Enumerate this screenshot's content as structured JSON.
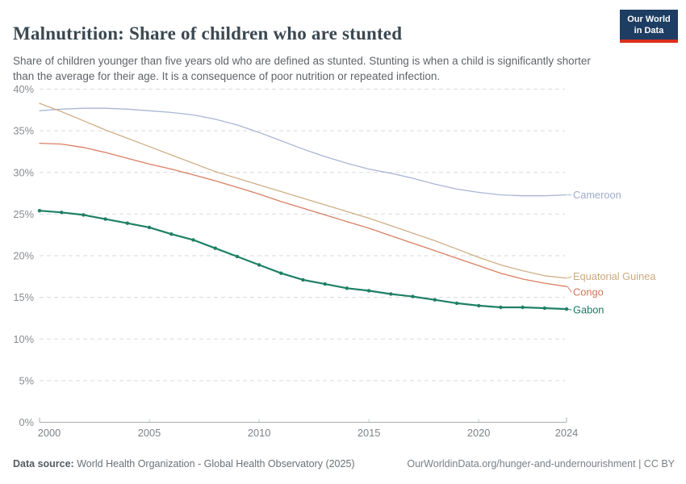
{
  "header": {
    "title": "Malnutrition: Share of children who are stunted",
    "subtitle": "Share of children younger than five years old who are defined as stunted. Stunting is when a child is significantly shorter than the average for their age. It is a consequence of poor nutrition or repeated infection.",
    "logo": {
      "line1": "Our World",
      "line2": "in Data",
      "bg_color": "#1d3d63",
      "bar_color": "#dc2e1c"
    }
  },
  "chart_data": {
    "type": "line",
    "title": "Malnutrition: Share of children who are stunted",
    "xlabel": "",
    "ylabel": "",
    "x": [
      2000,
      2001,
      2002,
      2003,
      2004,
      2005,
      2006,
      2007,
      2008,
      2009,
      2010,
      2011,
      2012,
      2013,
      2014,
      2015,
      2016,
      2017,
      2018,
      2019,
      2020,
      2021,
      2022,
      2023,
      2024
    ],
    "xticks": [
      2000,
      2005,
      2010,
      2015,
      2020,
      2024
    ],
    "ylim": [
      0,
      40
    ],
    "yticks": [
      0,
      5,
      10,
      15,
      20,
      25,
      30,
      35,
      40
    ],
    "ytick_suffix": "%",
    "grid": "horizontal-dashed",
    "legend_position": "right-end-labels",
    "series": [
      {
        "name": "Cameroon",
        "color": "#a9b6d3",
        "label_color": "#9fabcc",
        "markers": false,
        "values": [
          37.4,
          37.6,
          37.7,
          37.7,
          37.6,
          37.4,
          37.2,
          36.9,
          36.4,
          35.7,
          34.8,
          33.8,
          32.8,
          31.9,
          31.1,
          30.4,
          29.9,
          29.3,
          28.6,
          28.0,
          27.6,
          27.3,
          27.2,
          27.2,
          27.3
        ]
      },
      {
        "name": "Equatorial Guinea",
        "color": "#cfae87",
        "label_color": "#cbaa80",
        "markers": false,
        "values": [
          38.3,
          37.3,
          36.2,
          35.1,
          34.1,
          33.1,
          32.1,
          31.1,
          30.1,
          29.3,
          28.5,
          27.7,
          26.9,
          26.1,
          25.3,
          24.5,
          23.6,
          22.7,
          21.8,
          20.8,
          19.8,
          18.9,
          18.2,
          17.6,
          17.3
        ]
      },
      {
        "name": "Congo",
        "color": "#da7e63",
        "label_color": "#d5755b",
        "markers": false,
        "values": [
          33.5,
          33.4,
          33.0,
          32.4,
          31.7,
          31.0,
          30.4,
          29.7,
          29.0,
          28.2,
          27.4,
          26.5,
          25.7,
          24.9,
          24.1,
          23.3,
          22.4,
          21.5,
          20.6,
          19.7,
          18.8,
          17.9,
          17.2,
          16.7,
          16.3
        ]
      },
      {
        "name": "Gabon",
        "color": "#1e8064",
        "label_color": "#187a5f",
        "markers": true,
        "values": [
          25.4,
          25.2,
          24.9,
          24.4,
          23.9,
          23.4,
          22.6,
          21.9,
          20.9,
          19.9,
          18.9,
          17.9,
          17.1,
          16.6,
          16.1,
          15.8,
          15.4,
          15.1,
          14.7,
          14.3,
          14.0,
          13.8,
          13.8,
          13.7,
          13.6
        ]
      }
    ]
  },
  "footer": {
    "datasource_label": "Data source:",
    "datasource_text": " World Health Organization - Global Health Observatory (2025)",
    "link_text": "OurWorldinData.org/hunger-and-undernourishment | CC BY"
  }
}
